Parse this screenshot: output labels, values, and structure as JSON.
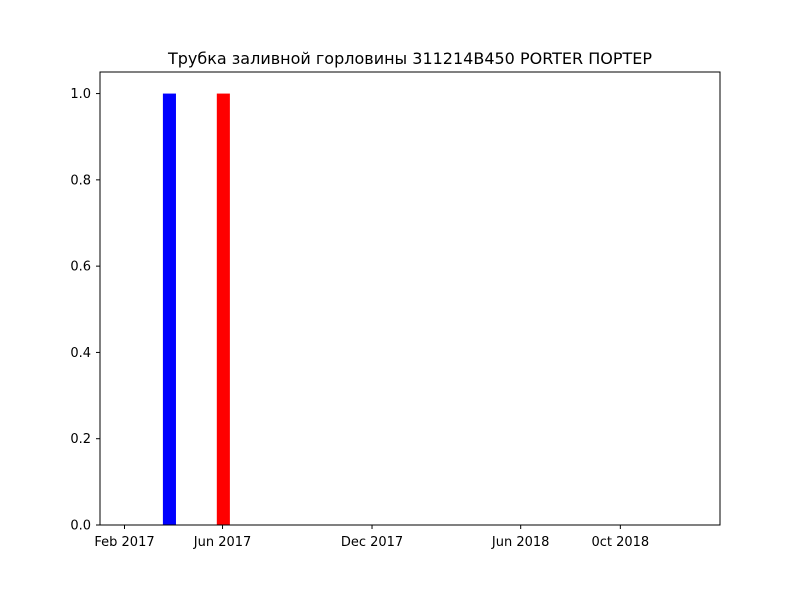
{
  "chart_data": {
    "type": "bar",
    "title": "Трубка заливной горловины 311214B450 PORTER ПОРТЕР",
    "xlabel": "",
    "ylabel": "",
    "x_axis_type": "date",
    "xlim": [
      "2017-01-02",
      "2019-01-31"
    ],
    "ylim": [
      0,
      1.05
    ],
    "x_ticks": [
      {
        "date": "2017-02-01",
        "label": "Feb 2017"
      },
      {
        "date": "2017-06-01",
        "label": "Jun 2017"
      },
      {
        "date": "2017-12-01",
        "label": "Dec 2017"
      },
      {
        "date": "2018-06-01",
        "label": "Jun 2018"
      },
      {
        "date": "2018-10-01",
        "label": "0ct 2018"
      }
    ],
    "y_ticks": [
      {
        "value": 0.0,
        "label": "0.0"
      },
      {
        "value": 0.2,
        "label": "0.2"
      },
      {
        "value": 0.4,
        "label": "0.4"
      },
      {
        "value": 0.6,
        "label": "0.6"
      },
      {
        "value": 0.8,
        "label": "0.8"
      },
      {
        "value": 1.0,
        "label": "1.0"
      }
    ],
    "bars": [
      {
        "start": "2017-03-20",
        "end": "2017-04-05",
        "value": 1,
        "color": "#0000ff"
      },
      {
        "start": "2017-05-25",
        "end": "2017-06-10",
        "value": 1,
        "color": "#ff0000"
      }
    ],
    "grid": false,
    "legend": "none"
  }
}
